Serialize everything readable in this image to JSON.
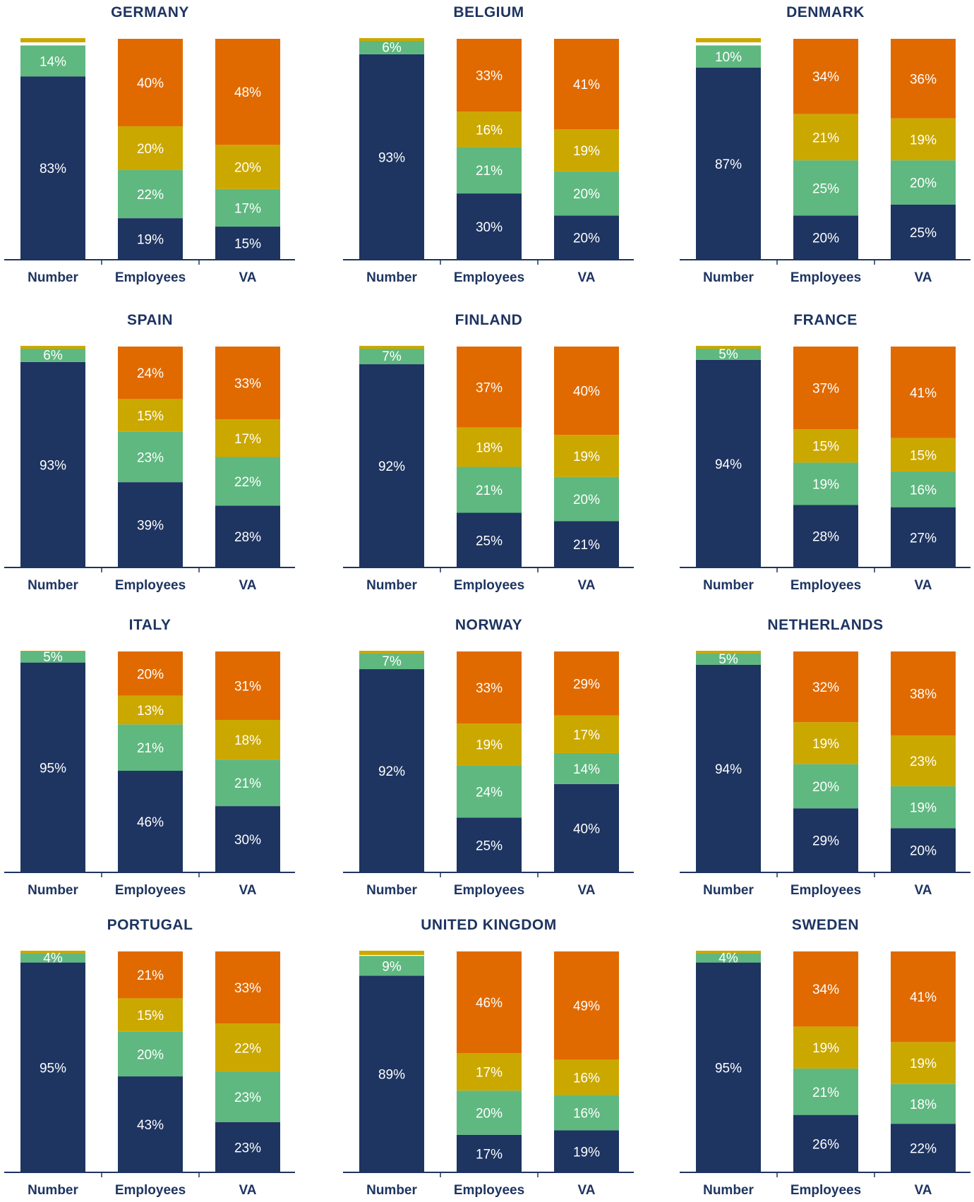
{
  "colors": {
    "segment_1": "#1e3461",
    "segment_2": "#5fb880",
    "segment_3": "#cba800",
    "segment_4": "#e06a00",
    "axis": "#1e3461",
    "label_text": "#ffffff"
  },
  "chart_data": [
    {
      "type": "bar",
      "stacked": true,
      "title": "GERMANY",
      "categories": [
        "Number",
        "Employees",
        "VA"
      ],
      "values": [
        [
          83,
          14,
          null,
          null
        ],
        [
          19,
          22,
          20,
          40
        ],
        [
          15,
          17,
          20,
          48
        ]
      ],
      "labels": [
        [
          "83%",
          "14%",
          "",
          ""
        ],
        [
          "19%",
          "22%",
          "20%",
          "40%"
        ],
        [
          "15%",
          "17%",
          "20%",
          "48%"
        ]
      ]
    },
    {
      "type": "bar",
      "stacked": true,
      "title": "BELGIUM",
      "categories": [
        "Number",
        "Employees",
        "VA"
      ],
      "values": [
        [
          93,
          6,
          null,
          null
        ],
        [
          30,
          21,
          16,
          33
        ],
        [
          20,
          20,
          19,
          41
        ]
      ],
      "labels": [
        [
          "93%",
          "6%",
          "",
          ""
        ],
        [
          "30%",
          "21%",
          "16%",
          "33%"
        ],
        [
          "20%",
          "20%",
          "19%",
          "41%"
        ]
      ]
    },
    {
      "type": "bar",
      "stacked": true,
      "title": "DENMARK",
      "categories": [
        "Number",
        "Employees",
        "VA"
      ],
      "values": [
        [
          87,
          10,
          null,
          null
        ],
        [
          20,
          25,
          21,
          34
        ],
        [
          25,
          20,
          19,
          36
        ]
      ],
      "labels": [
        [
          "87%",
          "10%",
          "",
          ""
        ],
        [
          "20%",
          "25%",
          "21%",
          "34%"
        ],
        [
          "25%",
          "20%",
          "19%",
          "36%"
        ]
      ]
    },
    {
      "type": "bar",
      "stacked": true,
      "title": "SPAIN",
      "categories": [
        "Number",
        "Employees",
        "VA"
      ],
      "values": [
        [
          93,
          6,
          null,
          null
        ],
        [
          39,
          23,
          15,
          24
        ],
        [
          28,
          22,
          17,
          33
        ]
      ],
      "labels": [
        [
          "93%",
          "6%",
          "",
          ""
        ],
        [
          "39%",
          "23%",
          "15%",
          "24%"
        ],
        [
          "28%",
          "22%",
          "17%",
          "33%"
        ]
      ]
    },
    {
      "type": "bar",
      "stacked": true,
      "title": "FINLAND",
      "categories": [
        "Number",
        "Employees",
        "VA"
      ],
      "values": [
        [
          92,
          7,
          null,
          null
        ],
        [
          25,
          21,
          18,
          37
        ],
        [
          21,
          20,
          19,
          40
        ]
      ],
      "labels": [
        [
          "92%",
          "7%",
          "",
          ""
        ],
        [
          "25%",
          "21%",
          "18%",
          "37%"
        ],
        [
          "21%",
          "20%",
          "19%",
          "40%"
        ]
      ]
    },
    {
      "type": "bar",
      "stacked": true,
      "title": "FRANCE",
      "categories": [
        "Number",
        "Employees",
        "VA"
      ],
      "values": [
        [
          94,
          5,
          null,
          null
        ],
        [
          28,
          19,
          15,
          37
        ],
        [
          27,
          16,
          15,
          41
        ]
      ],
      "labels": [
        [
          "94%",
          "5%",
          "",
          ""
        ],
        [
          "28%",
          "19%",
          "15%",
          "37%"
        ],
        [
          "27%",
          "16%",
          "15%",
          "41%"
        ]
      ]
    },
    {
      "type": "bar",
      "stacked": true,
      "title": "ITALY",
      "categories": [
        "Number",
        "Employees",
        "VA"
      ],
      "values": [
        [
          95,
          5,
          null,
          null
        ],
        [
          46,
          21,
          13,
          20
        ],
        [
          30,
          21,
          18,
          31
        ]
      ],
      "labels": [
        [
          "95%",
          "5%",
          "",
          ""
        ],
        [
          "46%",
          "21%",
          "13%",
          "20%"
        ],
        [
          "30%",
          "21%",
          "18%",
          "31%"
        ]
      ]
    },
    {
      "type": "bar",
      "stacked": true,
      "title": "NORWAY",
      "categories": [
        "Number",
        "Employees",
        "VA"
      ],
      "values": [
        [
          92,
          7,
          null,
          null
        ],
        [
          25,
          24,
          19,
          33
        ],
        [
          40,
          14,
          17,
          29
        ]
      ],
      "labels": [
        [
          "92%",
          "7%",
          "",
          ""
        ],
        [
          "25%",
          "24%",
          "19%",
          "33%"
        ],
        [
          "40%",
          "14%",
          "17%",
          "29%"
        ]
      ]
    },
    {
      "type": "bar",
      "stacked": true,
      "title": "NETHERLANDS",
      "categories": [
        "Number",
        "Employees",
        "VA"
      ],
      "values": [
        [
          94,
          5,
          null,
          null
        ],
        [
          29,
          20,
          19,
          32
        ],
        [
          20,
          19,
          23,
          38
        ]
      ],
      "labels": [
        [
          "94%",
          "5%",
          "",
          ""
        ],
        [
          "29%",
          "20%",
          "19%",
          "32%"
        ],
        [
          "20%",
          "19%",
          "23%",
          "38%"
        ]
      ]
    },
    {
      "type": "bar",
      "stacked": true,
      "title": "PORTUGAL",
      "categories": [
        "Number",
        "Employees",
        "VA"
      ],
      "values": [
        [
          95,
          4,
          null,
          null
        ],
        [
          43,
          20,
          15,
          21
        ],
        [
          23,
          23,
          22,
          33
        ]
      ],
      "labels": [
        [
          "95%",
          "4%",
          "",
          ""
        ],
        [
          "43%",
          "20%",
          "15%",
          "21%"
        ],
        [
          "23%",
          "23%",
          "22%",
          "33%"
        ]
      ]
    },
    {
      "type": "bar",
      "stacked": true,
      "title": "UNITED KINGDOM",
      "categories": [
        "Number",
        "Employees",
        "VA"
      ],
      "values": [
        [
          89,
          9,
          null,
          null
        ],
        [
          17,
          20,
          17,
          46
        ],
        [
          19,
          16,
          16,
          49
        ]
      ],
      "labels": [
        [
          "89%",
          "9%",
          "",
          ""
        ],
        [
          "17%",
          "20%",
          "17%",
          "46%"
        ],
        [
          "19%",
          "16%",
          "16%",
          "49%"
        ]
      ]
    },
    {
      "type": "bar",
      "stacked": true,
      "title": "SWEDEN",
      "categories": [
        "Number",
        "Employees",
        "VA"
      ],
      "values": [
        [
          95,
          4,
          null,
          null
        ],
        [
          26,
          21,
          19,
          34
        ],
        [
          22,
          18,
          19,
          41
        ]
      ],
      "labels": [
        [
          "95%",
          "4%",
          "",
          ""
        ],
        [
          "26%",
          "21%",
          "19%",
          "34%"
        ],
        [
          "22%",
          "18%",
          "19%",
          "41%"
        ]
      ]
    }
  ]
}
